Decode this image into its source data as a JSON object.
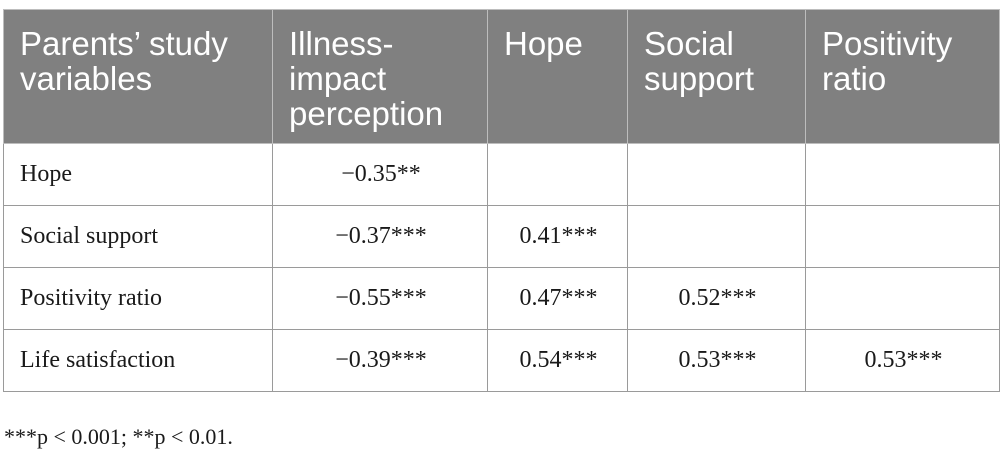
{
  "table": {
    "headers": [
      "Parents’ study variables",
      "Illness-impact perception",
      "Hope",
      "Social support",
      "Positivity ratio"
    ],
    "rows": [
      {
        "label": "Hope",
        "cells": [
          "−0.35**",
          "",
          "",
          ""
        ]
      },
      {
        "label": "Social support",
        "cells": [
          "−0.37***",
          "0.41***",
          "",
          ""
        ]
      },
      {
        "label": "Positivity ratio",
        "cells": [
          "−0.55***",
          "0.47***",
          "0.52***",
          ""
        ]
      },
      {
        "label": "Life satisfaction",
        "cells": [
          "−0.39***",
          "0.54***",
          "0.53***",
          "0.53***"
        ]
      }
    ]
  },
  "footnote": "***p < 0.001; **p < 0.01."
}
